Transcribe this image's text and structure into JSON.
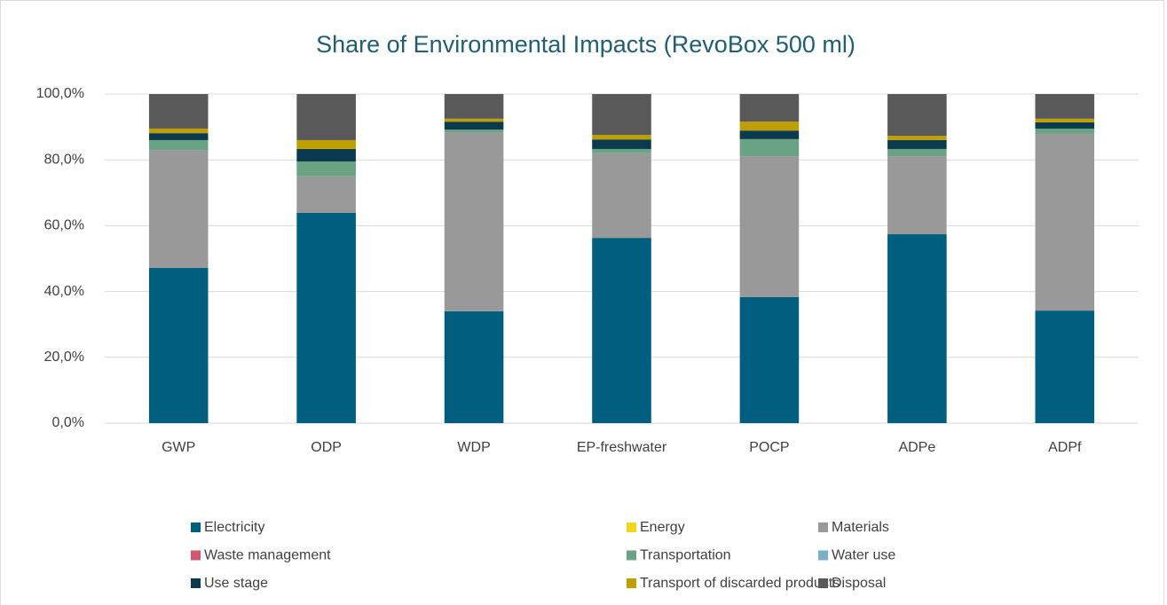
{
  "chart_data": {
    "type": "stacked_bar",
    "title": "Share of Environmental Impacts  (RevoBox 500 ml)",
    "categories": [
      "GWP",
      "ODP",
      "WDP",
      "EP-freshwater",
      "POCP",
      "ADPe",
      "ADPf"
    ],
    "series": [
      {
        "name": "Electricity",
        "color": "#005f7f",
        "values": [
          47.2,
          63.9,
          34.0,
          56.3,
          38.3,
          57.4,
          34.2
        ]
      },
      {
        "name": "Energy",
        "color": "#f5d51a",
        "values": [
          0,
          0,
          0,
          0,
          0,
          0,
          0
        ]
      },
      {
        "name": "Materials",
        "color": "#999999",
        "values": [
          35.8,
          11.1,
          54.4,
          25.7,
          42.8,
          23.7,
          53.7
        ]
      },
      {
        "name": "Waste management",
        "color": "#d4566e",
        "values": [
          0,
          0,
          0,
          0,
          0,
          0,
          0
        ]
      },
      {
        "name": "Transportation",
        "color": "#6aa383",
        "values": [
          3.0,
          4.5,
          0.8,
          1.3,
          5.2,
          2.2,
          1.6
        ]
      },
      {
        "name": "Water use",
        "color": "#7bb0c4",
        "values": [
          0,
          0,
          0,
          0,
          0,
          0,
          0
        ]
      },
      {
        "name": "Use stage",
        "color": "#0b3a4f",
        "values": [
          2.1,
          3.8,
          2.4,
          2.9,
          2.6,
          2.7,
          1.9
        ]
      },
      {
        "name": "Transport of discarded products",
        "color": "#bf9f00",
        "values": [
          1.4,
          2.7,
          0.9,
          1.4,
          2.7,
          1.3,
          1.1
        ]
      },
      {
        "name": "Disposal",
        "color": "#595959",
        "values": [
          10.5,
          14.0,
          7.5,
          12.4,
          8.4,
          12.7,
          7.5
        ]
      }
    ],
    "ylim": [
      0,
      100
    ],
    "yticks": [
      {
        "value": 0,
        "label": "0,0%"
      },
      {
        "value": 20,
        "label": "20,0%"
      },
      {
        "value": 40,
        "label": "40,0%"
      },
      {
        "value": 60,
        "label": "60,0%"
      },
      {
        "value": 80,
        "label": "80,0%"
      },
      {
        "value": 100,
        "label": "100,0%"
      }
    ],
    "grid": true,
    "legend": "bottom"
  }
}
